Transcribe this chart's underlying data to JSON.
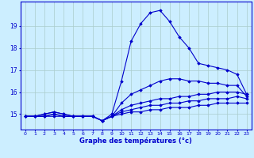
{
  "x": [
    0,
    1,
    2,
    3,
    4,
    5,
    6,
    7,
    8,
    9,
    10,
    11,
    12,
    13,
    14,
    15,
    16,
    17,
    18,
    19,
    20,
    21,
    22,
    23
  ],
  "series": [
    [
      14.9,
      14.9,
      15.0,
      15.1,
      15.0,
      14.9,
      14.9,
      14.9,
      14.7,
      15.0,
      16.5,
      18.3,
      19.1,
      19.6,
      19.7,
      19.2,
      18.5,
      18.0,
      17.3,
      17.2,
      17.1,
      17.0,
      16.8,
      15.9
    ],
    [
      14.9,
      14.9,
      15.0,
      15.1,
      15.0,
      14.9,
      14.9,
      14.9,
      14.7,
      14.9,
      15.5,
      15.9,
      16.1,
      16.3,
      16.5,
      16.6,
      16.6,
      16.5,
      16.5,
      16.4,
      16.4,
      16.3,
      16.3,
      15.8
    ],
    [
      14.9,
      14.9,
      14.9,
      15.0,
      14.9,
      14.9,
      14.9,
      14.9,
      14.7,
      14.9,
      15.2,
      15.4,
      15.5,
      15.6,
      15.7,
      15.7,
      15.8,
      15.8,
      15.9,
      15.9,
      16.0,
      16.0,
      16.0,
      15.9
    ],
    [
      14.9,
      14.9,
      14.9,
      15.0,
      14.9,
      14.9,
      14.9,
      14.9,
      14.7,
      14.9,
      15.1,
      15.2,
      15.3,
      15.4,
      15.4,
      15.5,
      15.5,
      15.6,
      15.6,
      15.7,
      15.7,
      15.7,
      15.8,
      15.7
    ],
    [
      14.9,
      14.9,
      14.9,
      14.9,
      14.9,
      14.9,
      14.9,
      14.9,
      14.7,
      14.9,
      15.0,
      15.1,
      15.1,
      15.2,
      15.2,
      15.3,
      15.3,
      15.3,
      15.4,
      15.4,
      15.5,
      15.5,
      15.5,
      15.5
    ]
  ],
  "line_color": "#0000cc",
  "marker": "D",
  "markersize": 1.8,
  "linewidth": 0.8,
  "xlabel": "Graphe des températures (°c)",
  "ylabel_ticks": [
    15,
    16,
    17,
    18,
    19
  ],
  "xticks": [
    0,
    1,
    2,
    3,
    4,
    5,
    6,
    7,
    8,
    9,
    10,
    11,
    12,
    13,
    14,
    15,
    16,
    17,
    18,
    19,
    20,
    21,
    22,
    23
  ],
  "ylim": [
    14.3,
    20.1
  ],
  "xlim": [
    -0.5,
    23.5
  ],
  "bg_color": "#cceeff",
  "grid_color": "#aacccc",
  "axis_color": "#0000cc",
  "label_color": "#0000cc"
}
